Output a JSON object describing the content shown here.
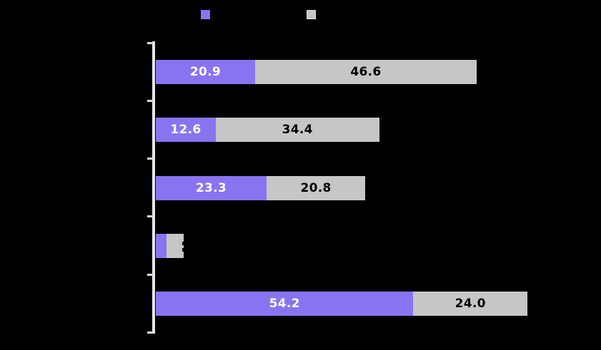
{
  "colors": {
    "background": "#000000",
    "purple": "#8874f0",
    "gray": "#c6c6c6",
    "axis": "#e6e6e6",
    "label_on_purple": "#ffffff",
    "label_on_gray": "#000000"
  },
  "legend": {
    "swatches": [
      {
        "name": "purple-series",
        "color": "#8874f0"
      },
      {
        "name": "gray-series",
        "color": "#c6c6c6"
      }
    ]
  },
  "chart_data": {
    "type": "bar",
    "orientation": "horizontal",
    "stacked": true,
    "grid": false,
    "categories": [
      "",
      "",
      "",
      "",
      ""
    ],
    "xlim": [
      0,
      94
    ],
    "series": [
      {
        "name": "purple",
        "color": "#8874f0",
        "values": [
          20.9,
          12.6,
          23.3,
          2.3,
          54.2
        ],
        "labels": [
          "20.9",
          "12.6",
          "23.3",
          "",
          "54.2"
        ],
        "label_color": "#ffffff"
      },
      {
        "name": "gray",
        "color": "#c6c6c6",
        "values": [
          46.6,
          34.4,
          20.8,
          3.5,
          24.0
        ],
        "labels": [
          "46.6",
          "34.4",
          "20.8",
          "",
          "24.0"
        ],
        "label_color": "#000000",
        "clipped_label_rows": [
          3
        ]
      }
    ]
  }
}
